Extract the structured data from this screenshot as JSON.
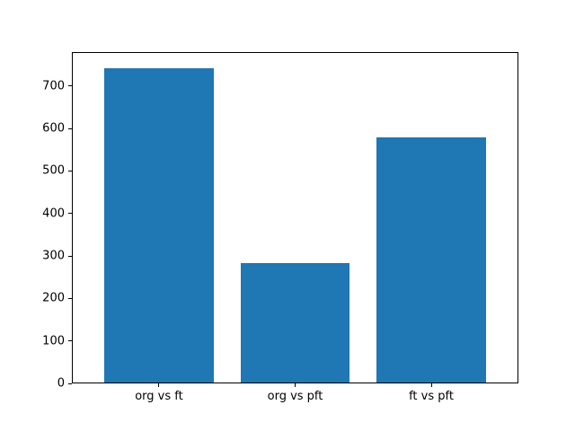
{
  "chart_data": {
    "type": "bar",
    "title": "",
    "xlabel": "",
    "ylabel": "",
    "categories": [
      "org vs ft",
      "org vs pft",
      "ft vs pft"
    ],
    "values": [
      743,
      283,
      579
    ],
    "yticks": [
      0,
      100,
      200,
      300,
      400,
      500,
      600,
      700
    ],
    "ylim": [
      0,
      780
    ],
    "bar_width_fraction": 0.8,
    "grid": false,
    "legend": null,
    "bar_color": "#1f77b4",
    "spine_color": "#000000",
    "background_color": "#ffffff",
    "tick_label_color": "#000000"
  }
}
